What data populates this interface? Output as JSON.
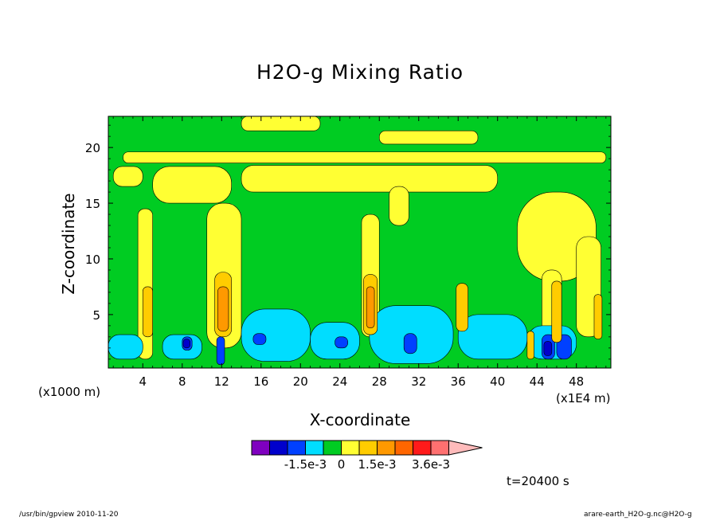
{
  "chart_data": {
    "type": "heatmap",
    "title": "H2O-g Mixing Ratio",
    "xlabel": "X-coordinate",
    "ylabel": "Z-coordinate",
    "x_unit": "(x1E4 m)",
    "y_unit": "(x1000 m)",
    "xlim": [
      0.5,
      51.5
    ],
    "ylim": [
      0.2,
      22.8
    ],
    "x_ticks": [
      4,
      8,
      12,
      16,
      20,
      24,
      28,
      32,
      36,
      40,
      44,
      48
    ],
    "y_ticks": [
      5,
      10,
      15,
      20
    ],
    "colorbar": {
      "levels": [
        "#7f00bf",
        "#0000cc",
        "#0040ff",
        "#00ddff",
        "#00cc22",
        "#ffff33",
        "#ffcc00",
        "#ff9900",
        "#ff6600",
        "#ff1a1a",
        "#ff7070",
        "#ffbbbb"
      ],
      "tick_labels": [
        "-1.5e-3",
        "0",
        "1.5e-3",
        "3.6e-3"
      ]
    },
    "time_label": "t=20400 s",
    "regions": [
      {
        "level": 4,
        "comment": "green background"
      },
      {
        "level": 5,
        "x": [
          2,
          51
        ],
        "z": [
          18.6,
          19.6
        ]
      },
      {
        "level": 5,
        "x": [
          1,
          4
        ],
        "z": [
          16.5,
          18.3
        ]
      },
      {
        "level": 5,
        "x": [
          3.5,
          5
        ],
        "z": [
          1,
          14.5
        ]
      },
      {
        "level": 5,
        "x": [
          5,
          13
        ],
        "z": [
          15,
          18.3
        ]
      },
      {
        "level": 5,
        "x": [
          10.5,
          14
        ],
        "z": [
          2,
          15
        ]
      },
      {
        "level": 5,
        "x": [
          14,
          40
        ],
        "z": [
          16,
          18.4
        ]
      },
      {
        "level": 5,
        "x": [
          26.2,
          28
        ],
        "z": [
          3,
          14
        ]
      },
      {
        "level": 5,
        "x": [
          42,
          50
        ],
        "z": [
          8,
          16
        ]
      },
      {
        "level": 5,
        "x": [
          44.5,
          46.5
        ],
        "z": [
          1,
          9
        ]
      },
      {
        "level": 5,
        "x": [
          48,
          50.5
        ],
        "z": [
          3,
          12
        ]
      },
      {
        "level": 5,
        "x": [
          29,
          31
        ],
        "z": [
          13,
          16.5
        ]
      },
      {
        "level": 5,
        "x": [
          14,
          22
        ],
        "z": [
          21.5,
          22.8
        ]
      },
      {
        "level": 5,
        "x": [
          28,
          38
        ],
        "z": [
          20.3,
          21.5
        ]
      },
      {
        "level": 3,
        "x": [
          0.5,
          4
        ],
        "z": [
          1,
          3.2
        ]
      },
      {
        "level": 3,
        "x": [
          6,
          10
        ],
        "z": [
          1,
          3.2
        ]
      },
      {
        "level": 3,
        "x": [
          14,
          21
        ],
        "z": [
          0.8,
          5.5
        ]
      },
      {
        "level": 3,
        "x": [
          21,
          26
        ],
        "z": [
          1,
          4.3
        ]
      },
      {
        "level": 3,
        "x": [
          27,
          35.5
        ],
        "z": [
          0.6,
          5.8
        ]
      },
      {
        "level": 3,
        "x": [
          36,
          43
        ],
        "z": [
          1,
          5
        ]
      },
      {
        "level": 3,
        "x": [
          43,
          48
        ],
        "z": [
          1,
          4
        ]
      },
      {
        "level": 2,
        "x": [
          8,
          9
        ],
        "z": [
          1.8,
          3
        ]
      },
      {
        "level": 1,
        "x": [
          8.1,
          8.8
        ],
        "z": [
          2,
          2.8
        ]
      },
      {
        "level": 2,
        "x": [
          15.2,
          16.5
        ],
        "z": [
          2.3,
          3.3
        ]
      },
      {
        "level": 2,
        "x": [
          23.5,
          24.8
        ],
        "z": [
          2,
          3
        ]
      },
      {
        "level": 2,
        "x": [
          30.5,
          31.8
        ],
        "z": [
          1.5,
          3.3
        ]
      },
      {
        "level": 2,
        "x": [
          44.5,
          45.8
        ],
        "z": [
          1,
          3.2
        ]
      },
      {
        "level": 1,
        "x": [
          44.7,
          45.5
        ],
        "z": [
          1.3,
          2.6
        ]
      },
      {
        "level": 2,
        "x": [
          46,
          47.5
        ],
        "z": [
          1,
          3.2
        ]
      },
      {
        "level": 2,
        "x": [
          11.5,
          12.3
        ],
        "z": [
          0.5,
          3
        ]
      },
      {
        "level": 6,
        "x": [
          11.3,
          13
        ],
        "z": [
          3,
          8.8
        ]
      },
      {
        "level": 7,
        "x": [
          11.6,
          12.7
        ],
        "z": [
          3.5,
          7.5
        ]
      },
      {
        "level": 6,
        "x": [
          26.4,
          27.8
        ],
        "z": [
          3.2,
          8.6
        ]
      },
      {
        "level": 7,
        "x": [
          26.7,
          27.5
        ],
        "z": [
          3.8,
          7.5
        ]
      },
      {
        "level": 6,
        "x": [
          35.8,
          37
        ],
        "z": [
          3.5,
          7.8
        ]
      },
      {
        "level": 6,
        "x": [
          4,
          5
        ],
        "z": [
          3,
          7.5
        ]
      },
      {
        "level": 6,
        "x": [
          45.5,
          46.5
        ],
        "z": [
          2.5,
          8
        ]
      },
      {
        "level": 6,
        "x": [
          49.8,
          50.6
        ],
        "z": [
          2.8,
          6.8
        ]
      },
      {
        "level": 6,
        "x": [
          43,
          43.7
        ],
        "z": [
          1,
          3.5
        ]
      }
    ]
  },
  "footer": {
    "left": "/usr/bin/gpview  2010-11-20",
    "right": "arare-earth_H2O-g.nc@H2O-g"
  }
}
